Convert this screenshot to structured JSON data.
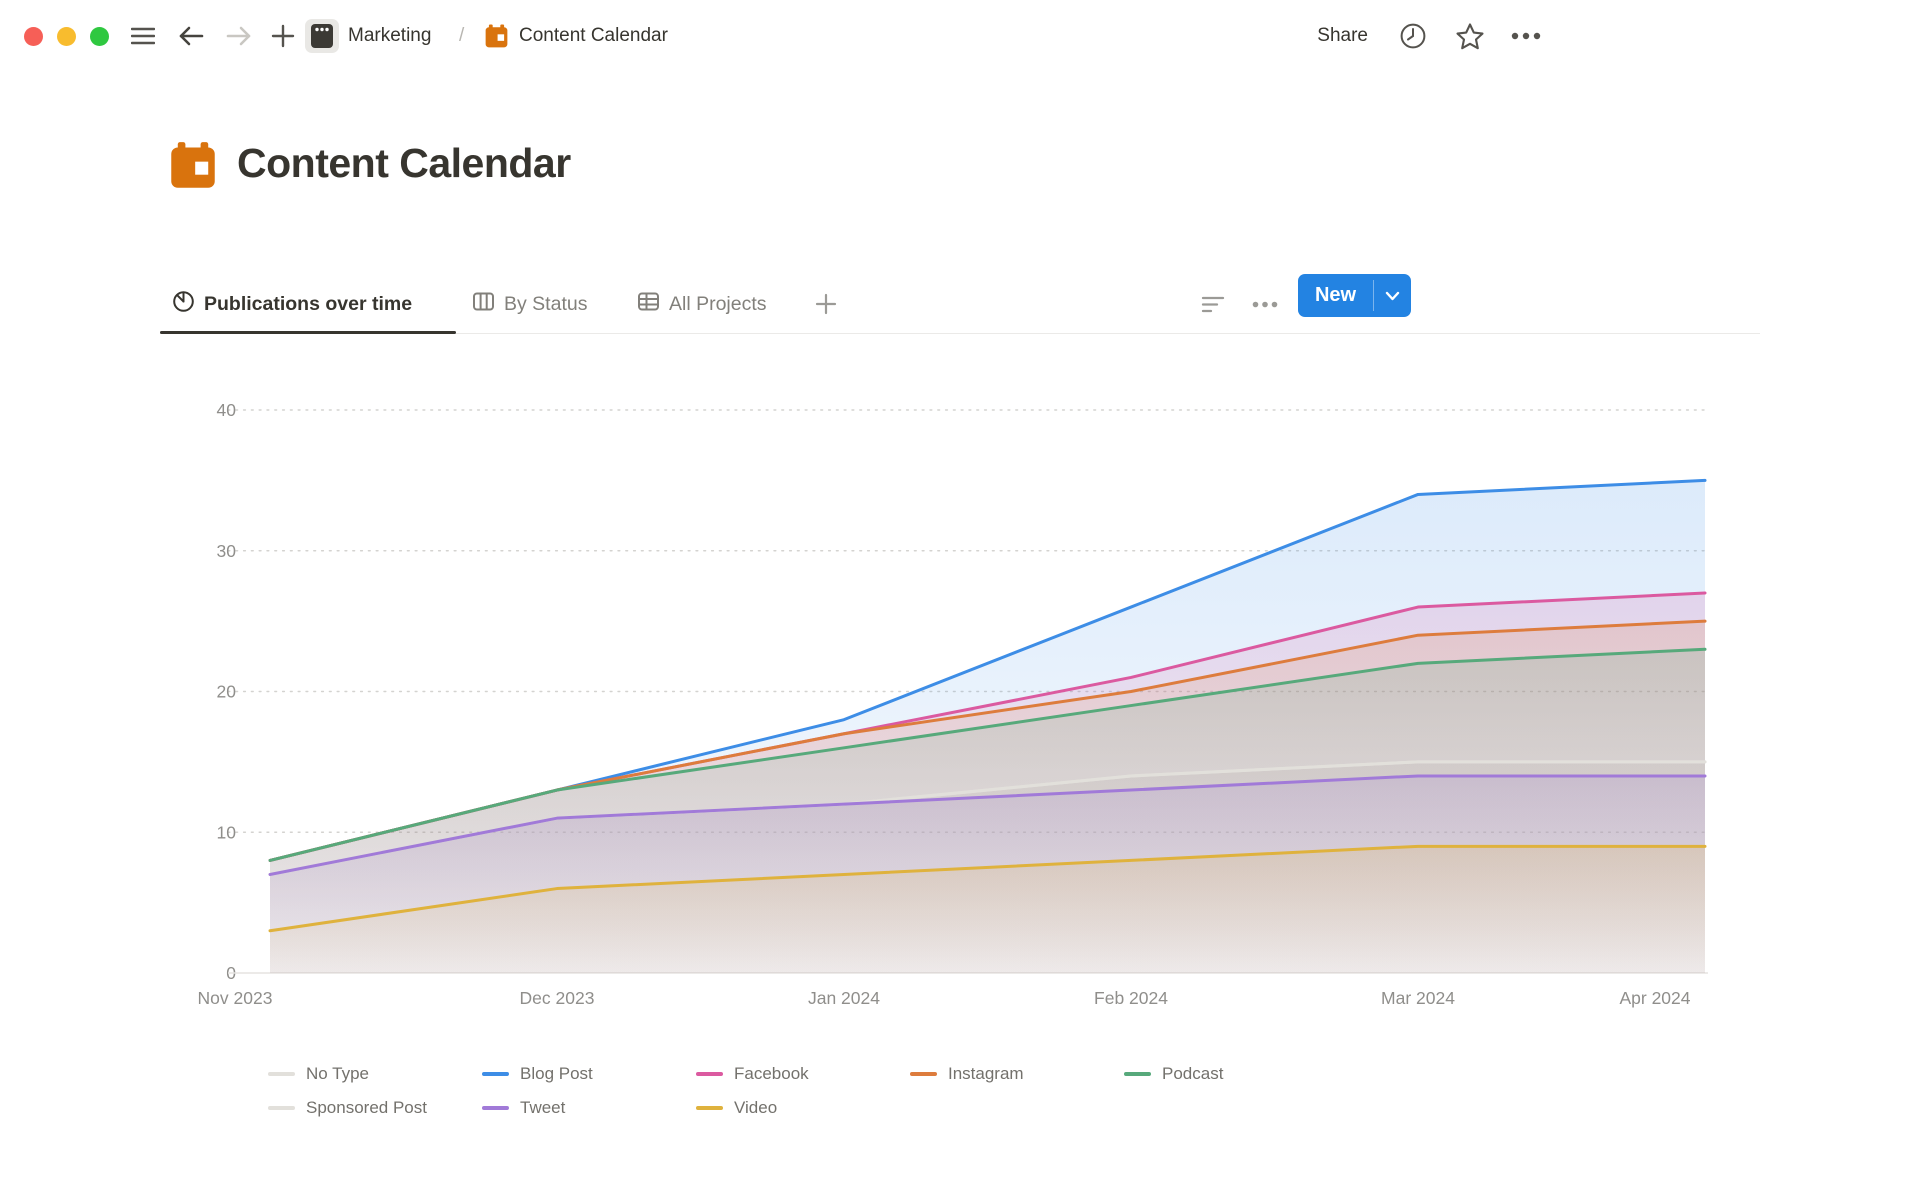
{
  "window": {
    "breadcrumb": {
      "workspace": "Marketing",
      "separator": "/",
      "page": "Content Calendar"
    },
    "share_label": "Share"
  },
  "page": {
    "title": "Content Calendar"
  },
  "view_tabs": [
    {
      "label": "Publications over time",
      "active": true
    },
    {
      "label": "By Status",
      "active": false
    },
    {
      "label": "All Projects",
      "active": false
    }
  ],
  "toolbar": {
    "new_label": "New"
  },
  "chart_data": {
    "type": "area",
    "title": "Publications over time",
    "x": [
      "Nov 2023",
      "Dec 2023",
      "Jan 2024",
      "Feb 2024",
      "Mar 2024",
      "Apr 2024"
    ],
    "ylabel": "",
    "xlabel": "",
    "ylim": [
      0,
      40
    ],
    "yticks": [
      0,
      10,
      20,
      30,
      40
    ],
    "grid": "horizontal-dotted",
    "legend_position": "bottom",
    "series": [
      {
        "name": "No Type",
        "color": "#e2e0db",
        "values": [
          7,
          11,
          12,
          14,
          15,
          15
        ]
      },
      {
        "name": "Sponsored Post",
        "color": "#e2e0db",
        "values": [
          7,
          11,
          12,
          14,
          15,
          15
        ]
      },
      {
        "name": "Blog Post",
        "color": "#3d8de6",
        "values": [
          8,
          13,
          18,
          26,
          34,
          35
        ]
      },
      {
        "name": "Facebook",
        "color": "#db5aa0",
        "values": [
          8,
          13,
          17,
          21,
          26,
          27
        ]
      },
      {
        "name": "Instagram",
        "color": "#dd7c3d",
        "values": [
          8,
          13,
          17,
          20,
          24,
          25
        ]
      },
      {
        "name": "Podcast",
        "color": "#57a97b",
        "values": [
          8,
          13,
          16,
          19,
          22,
          23
        ]
      },
      {
        "name": "Tweet",
        "color": "#a17ad8",
        "values": [
          7,
          11,
          12,
          13,
          14,
          14
        ]
      },
      {
        "name": "Video",
        "color": "#dfb23d",
        "values": [
          3,
          6,
          7,
          8,
          9,
          9
        ]
      }
    ],
    "legend_display_order": [
      "No Type",
      "Blog Post",
      "Facebook",
      "Instagram",
      "Podcast",
      "Sponsored Post",
      "Tweet",
      "Video"
    ]
  }
}
